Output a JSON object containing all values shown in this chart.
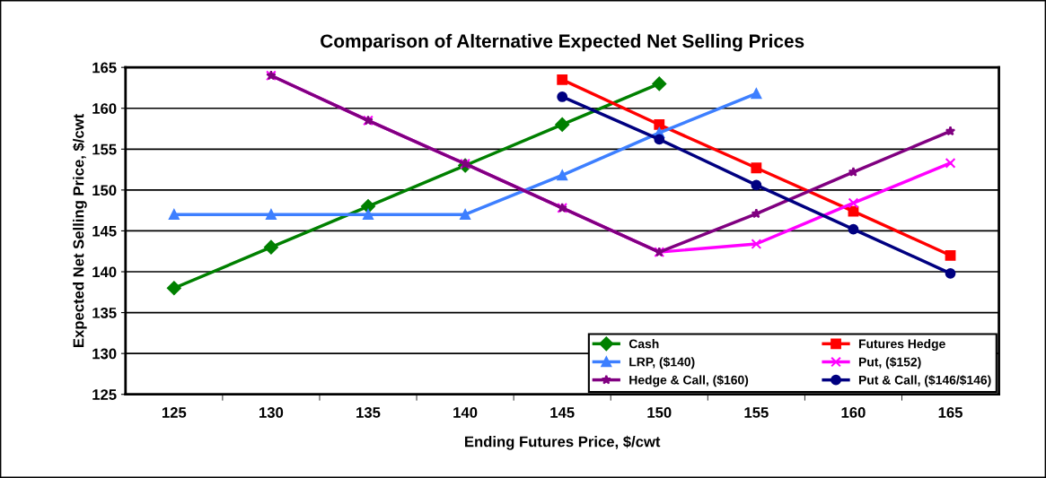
{
  "chart_data": {
    "type": "line",
    "title": "Comparison of Alternative Expected Net Selling Prices",
    "xlabel": "Ending Futures Price, $/cwt",
    "ylabel": "Expected Net Selling Price, $/cwt",
    "categories": [
      "125",
      "130",
      "135",
      "140",
      "145",
      "150",
      "155",
      "160",
      "165"
    ],
    "ylim": [
      125,
      165
    ],
    "yticks": [
      125,
      130,
      135,
      140,
      145,
      150,
      155,
      160,
      165
    ],
    "grid": "y",
    "legend": "bottom right",
    "series": [
      {
        "name": "Cash",
        "color": "#008000",
        "marker": "diamond",
        "values": [
          138,
          143,
          148,
          153,
          158,
          163,
          null,
          null,
          null
        ]
      },
      {
        "name": "Futures Hedge",
        "color": "#ff0000",
        "marker": "square",
        "values": [
          null,
          null,
          null,
          null,
          163.5,
          158,
          152.7,
          147.4,
          142
        ]
      },
      {
        "name": "LRP, ($140)",
        "color": "#3d7fff",
        "marker": "triangle",
        "values": [
          147,
          147,
          147,
          147,
          151.8,
          157,
          161.8,
          null,
          null
        ]
      },
      {
        "name": "Put, ($152)",
        "color": "#ff00ff",
        "marker": "cross",
        "values": [
          null,
          164,
          158.5,
          153.2,
          147.8,
          142.4,
          143.4,
          148.4,
          153.3
        ]
      },
      {
        "name": "Hedge & Call, ($160)",
        "color": "#800080",
        "marker": "star",
        "values": [
          null,
          164,
          158.5,
          153.2,
          147.8,
          142.4,
          147.1,
          152.2,
          157.2
        ]
      },
      {
        "name": "Put & Call, ($146/$146)",
        "color": "#000080",
        "marker": "circle",
        "values": [
          null,
          null,
          null,
          null,
          161.4,
          156.2,
          150.6,
          145.2,
          139.8
        ]
      }
    ]
  }
}
